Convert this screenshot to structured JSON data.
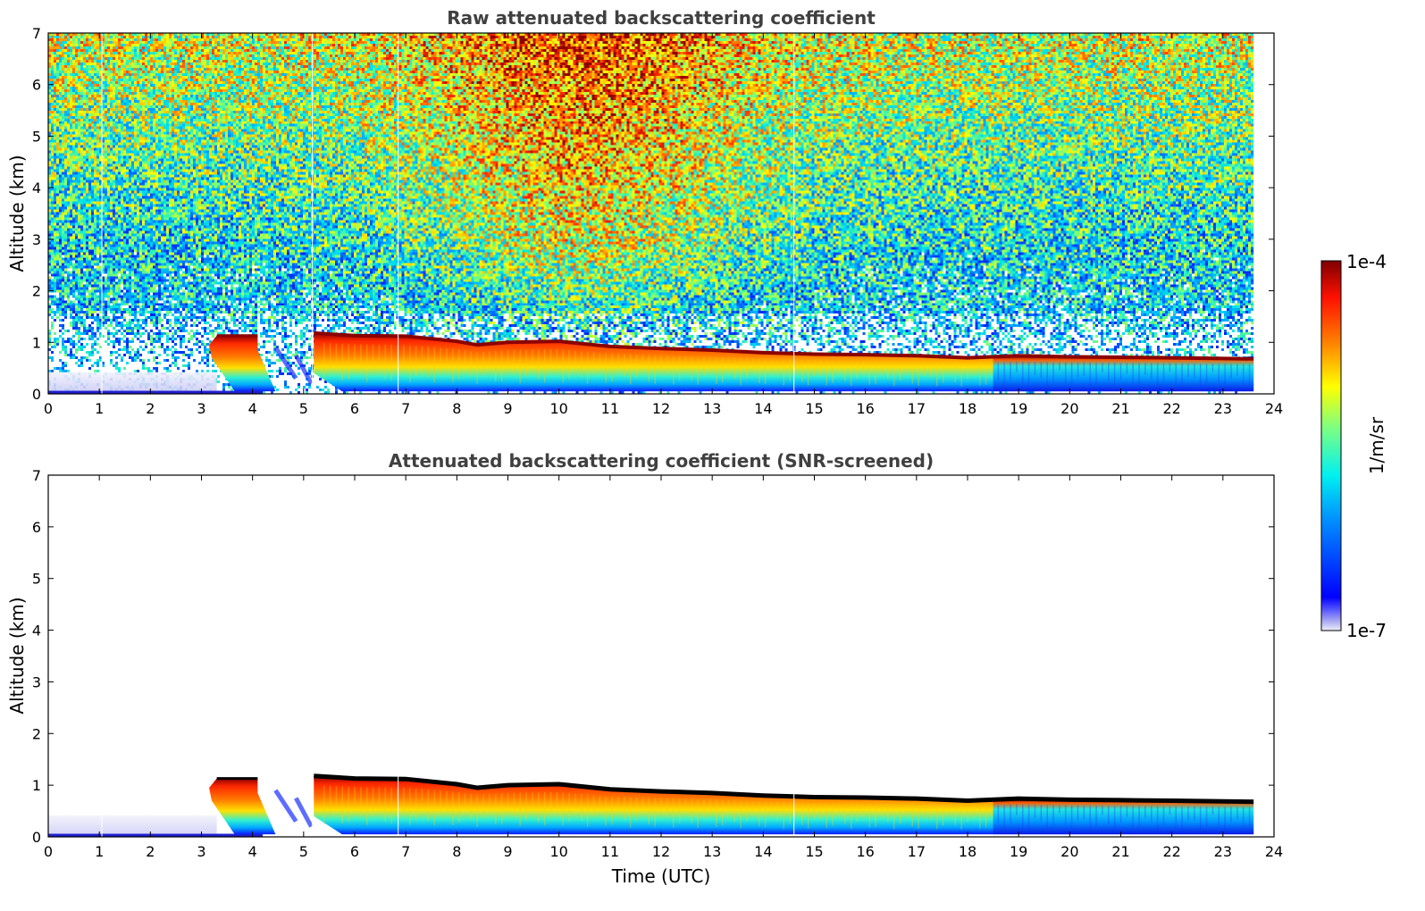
{
  "chart_data": [
    {
      "type": "heatmap",
      "title": "Raw attenuated backscattering coefficient",
      "xlabel": "",
      "ylabel": "Altitude (km)",
      "xlim": [
        0,
        24
      ],
      "ylim": [
        0,
        7
      ],
      "xticks": [
        "0",
        "1",
        "2",
        "3",
        "4",
        "5",
        "6",
        "7",
        "8",
        "9",
        "10",
        "11",
        "12",
        "13",
        "14",
        "15",
        "16",
        "17",
        "18",
        "19",
        "20",
        "21",
        "22",
        "23",
        "24"
      ],
      "yticks": [
        "0",
        "1",
        "2",
        "3",
        "4",
        "5",
        "6",
        "7"
      ],
      "data_end_time": 23.6,
      "noise": true,
      "cloud_base_km": 0.05,
      "cloud_top_km": [
        [
          3.25,
          1.13
        ],
        [
          4.1,
          1.13
        ],
        [
          5.2,
          1.18
        ],
        [
          6.0,
          1.13
        ],
        [
          7.0,
          1.12
        ],
        [
          8.0,
          1.02
        ],
        [
          8.4,
          0.95
        ],
        [
          9.0,
          1.0
        ],
        [
          10.0,
          1.02
        ],
        [
          11.0,
          0.92
        ],
        [
          12.0,
          0.88
        ],
        [
          13.0,
          0.85
        ],
        [
          14.0,
          0.8
        ],
        [
          15.0,
          0.77
        ],
        [
          16.0,
          0.76
        ],
        [
          17.0,
          0.74
        ],
        [
          18.0,
          0.7
        ],
        [
          19.0,
          0.74
        ],
        [
          20.0,
          0.72
        ],
        [
          21.0,
          0.71
        ],
        [
          22.0,
          0.7
        ],
        [
          23.6,
          0.68
        ]
      ]
    },
    {
      "type": "heatmap",
      "title": "Attenuated backscattering coefficient (SNR-screened)",
      "xlabel": "Time (UTC)",
      "ylabel": "Altitude (km)",
      "xlim": [
        0,
        24
      ],
      "ylim": [
        0,
        7
      ],
      "xticks": [
        "0",
        "1",
        "2",
        "3",
        "4",
        "5",
        "6",
        "7",
        "8",
        "9",
        "10",
        "11",
        "12",
        "13",
        "14",
        "15",
        "16",
        "17",
        "18",
        "19",
        "20",
        "21",
        "22",
        "23",
        "24"
      ],
      "yticks": [
        "0",
        "1",
        "2",
        "3",
        "4",
        "5",
        "6",
        "7"
      ],
      "data_end_time": 23.6,
      "noise": false,
      "cloud_base_km": 0.05,
      "cloud_top_km": [
        [
          3.25,
          1.13
        ],
        [
          4.1,
          1.13
        ],
        [
          5.2,
          1.18
        ],
        [
          6.0,
          1.13
        ],
        [
          7.0,
          1.12
        ],
        [
          8.0,
          1.02
        ],
        [
          8.4,
          0.95
        ],
        [
          9.0,
          1.0
        ],
        [
          10.0,
          1.02
        ],
        [
          11.0,
          0.92
        ],
        [
          12.0,
          0.88
        ],
        [
          13.0,
          0.85
        ],
        [
          14.0,
          0.8
        ],
        [
          15.0,
          0.77
        ],
        [
          16.0,
          0.76
        ],
        [
          17.0,
          0.74
        ],
        [
          18.0,
          0.7
        ],
        [
          19.0,
          0.74
        ],
        [
          20.0,
          0.72
        ],
        [
          21.0,
          0.71
        ],
        [
          22.0,
          0.7
        ],
        [
          23.6,
          0.68
        ]
      ]
    }
  ],
  "colorbar": {
    "max_label": "1e-4",
    "min_label": "1e-7",
    "unit_label": "1/m/sr",
    "colors": [
      "#00007f",
      "#0000ff",
      "#007fff",
      "#00ffff",
      "#7fff7f",
      "#ffff00",
      "#ff7f00",
      "#ff0000",
      "#7f0000"
    ]
  }
}
